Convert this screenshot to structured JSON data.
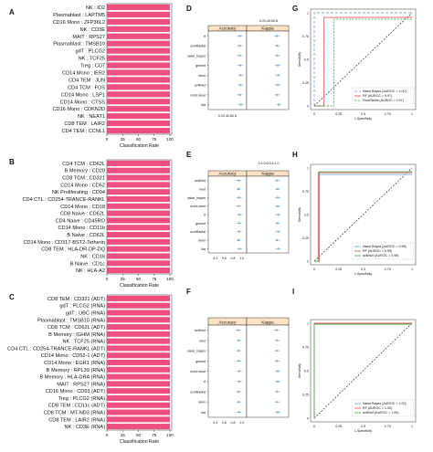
{
  "chart_data": [
    {
      "type": "bar",
      "panel_label": "A",
      "xlabel": "Classification Rate",
      "xticks": [
        "0",
        "25",
        "50",
        "75",
        "100"
      ],
      "xlim": [
        0,
        100
      ],
      "categories": [
        "NK : ID2",
        "Plasmablast : LAPTM5",
        "CD16 Mono : ZFP36L2",
        "NK : CD3E",
        "MAIT : RPS27",
        "Plasmablast : TMSB10",
        "gdT : PLCG2",
        "NK : TCF25",
        "Treg : CD7",
        "CD14 Mono : IER2",
        "CD4 TEM : JUN",
        "CD4 TCM : FOS",
        "CD14 Mono : LSP1",
        "CD14 Mono : CTSS",
        "CD16 Mono : CDKN2D",
        "NK : NEAT1",
        "CD8 TEM : LAIR2",
        "CD4 TEM : CCNL1"
      ],
      "values": [
        100,
        100,
        100,
        100,
        100,
        100,
        100,
        100,
        100,
        100,
        100,
        100,
        100,
        100,
        100,
        100,
        100,
        100
      ]
    },
    {
      "type": "bar",
      "panel_label": "B",
      "xlabel": "Classification Rate",
      "xticks": [
        "0",
        "25",
        "50",
        "75",
        "100"
      ],
      "xlim": [
        0,
        100
      ],
      "categories": [
        "CD4 TCM : CD62L",
        "B Memory : CD20",
        "CD8 TCM : CD321",
        "CD14 Mono : CD52",
        "NK Proliferating : CD94",
        "CD4 CTL : CD254-TRANCE-RANKL",
        "CD14 Mono : CD18",
        "CD8 Naive : CD62L",
        "CD4 Naive : CD45RO",
        "CD14 Mono : CD11b",
        "B Naive : CD62L",
        "CD14 Mono : CD317-BST2-Tetherin",
        "CD8 TEM : HLA-DR-DP-DQ",
        "NK : CD16",
        "B Naive : CD1c",
        "NK : HLA-A2"
      ],
      "values": [
        100,
        100,
        100,
        100,
        100,
        100,
        100,
        100,
        100,
        100,
        100,
        100,
        100,
        100,
        100,
        100
      ]
    },
    {
      "type": "bar",
      "panel_label": "C",
      "xlabel": "Classification Rate",
      "xticks": [
        "0",
        "25",
        "50",
        "75",
        "100"
      ],
      "xlim": [
        0,
        100
      ],
      "categories": [
        "CD8 TEM : CD321 (ADT)",
        "gdT : PLCG2 (RNA)",
        "gdT : UBC (RNA)",
        "Plasmablast : TMSB10 (RNA)",
        "CD8 TCM : CD62L (ADT)",
        "B Memory : IGHM (RNA)",
        "NK : TCF25 (RNA)",
        "CD4 CTL : CD254-TRANCE-RANKL (ADT)",
        "CD14 Mono : CD52-1 (ADT)",
        "CD14 Mono : EGR1 (RNA)",
        "B Memory : RPL39 (RNA)",
        "B Memory : HLA-DRA (RNA)",
        "MAIT : RPS27 (RNA)",
        "CD16 Mono : CD93 (ADT)",
        "Treg : PLCG2 (RNA)",
        "CD8 TEM : CD11c (ADT)",
        "CD8 TCM : MT-ND3 (RNA)",
        "CD8 TEM : LAIR2 (RNA)",
        "NK : CD3E (RNA)"
      ],
      "values": [
        100,
        100,
        100,
        100,
        100,
        100,
        100,
        100,
        100,
        100,
        100,
        100,
        100,
        100,
        100,
        100,
        100,
        100,
        100
      ]
    },
    {
      "type": "scatter",
      "panel_label": "D",
      "facets": [
        "Accuracy",
        "Kappa"
      ],
      "top_ticks": "0.20.40.60.8",
      "bottom_ticks": "0.20.40.60.8",
      "categories": [
        "rf",
        "svmRadial",
        "naive_bayes",
        "glmnet",
        "kknn",
        "avNNet",
        "svmLinear",
        "lda"
      ],
      "series": [
        {
          "facet": "Accuracy",
          "values": [
            0.8,
            0.8,
            0.8,
            0.81,
            0.82,
            0.82,
            0.8,
            0.83
          ]
        },
        {
          "facet": "Kappa",
          "values": [
            0.7,
            0.71,
            0.71,
            0.72,
            0.73,
            0.72,
            0.71,
            0.74
          ]
        }
      ],
      "xlim": [
        0.1,
        0.9
      ]
    },
    {
      "type": "scatter",
      "panel_label": "E",
      "facets": [
        "Accuracy",
        "Kappa"
      ],
      "top_ticks": "0.4 0.6 0.8 1.0",
      "bottom_ticks": [
        "0.4",
        "0.6",
        "0.8",
        "1.0"
      ],
      "categories": [
        "avNNet",
        "nnet",
        "naive_bayes",
        "svmLinear",
        "rf",
        "glmnet",
        "svmRadial",
        "kknn",
        "lda"
      ],
      "series": [
        {
          "facet": "Accuracy",
          "values": [
            0.93,
            0.93,
            0.94,
            0.93,
            0.95,
            0.94,
            0.94,
            0.93,
            0.95
          ]
        },
        {
          "facet": "Kappa",
          "values": [
            0.87,
            0.88,
            0.88,
            0.88,
            0.89,
            0.88,
            0.89,
            0.87,
            0.89
          ]
        }
      ],
      "xlim": [
        0.3,
        1.05
      ]
    },
    {
      "type": "scatter",
      "panel_label": "F",
      "facets": [
        "Accuracy",
        "Kappa"
      ],
      "bottom_ticks": [
        "0.4",
        "0.6",
        "0.8",
        "1.0"
      ],
      "categories": [
        "avNNet",
        "nnet",
        "naive_bayes",
        "glmnet",
        "svmLinear",
        "rf",
        "svmRadial",
        "kknn",
        "lda"
      ],
      "series": [
        {
          "facet": "Accuracy",
          "values": [
            0.92,
            0.93,
            0.93,
            0.93,
            0.94,
            0.94,
            0.93,
            0.93,
            0.94
          ]
        },
        {
          "facet": "Kappa",
          "values": [
            0.86,
            0.87,
            0.87,
            0.87,
            0.88,
            0.88,
            0.87,
            0.87,
            0.88
          ]
        }
      ],
      "xlim": [
        0.3,
        1.05
      ]
    },
    {
      "type": "line",
      "panel_label": "G",
      "xlabel": "1-Specificity",
      "ylabel": "Sensitivity",
      "xticks": [
        "0",
        "0.25",
        "0.5",
        "0.75",
        "1"
      ],
      "yticks": [
        "0",
        "0.25",
        "0.5",
        "0.75",
        "1"
      ],
      "legend_position": "bottom-right",
      "series": [
        {
          "name": "Naive Bayes (AUROC = 1.00)",
          "color": "#6fa8dc",
          "dash": "3,2",
          "x": [
            0,
            0,
            1
          ],
          "y": [
            0,
            1,
            1
          ]
        },
        {
          "name": "RF (AUROC = 0.97)",
          "color": "#e05757",
          "dash": "",
          "x": [
            0,
            0.1,
            0.1,
            1
          ],
          "y": [
            0,
            0,
            0.95,
            0.95
          ]
        },
        {
          "name": "SvmRadial (AUROC = 0.97)",
          "color": "#4caf50",
          "dash": "2,1.5",
          "x": [
            0,
            0.2,
            0.2,
            1
          ],
          "y": [
            0,
            0,
            0.93,
            0.93
          ]
        }
      ]
    },
    {
      "type": "line",
      "panel_label": "H",
      "xlabel": "1-Specificity",
      "ylabel": "Sensitivity",
      "xticks": [
        "0",
        "0.25",
        "0.5",
        "0.75",
        "1"
      ],
      "yticks": [
        "0",
        "0.25",
        "0.5",
        "0.75",
        "1"
      ],
      "legend_position": "bottom-right",
      "series": [
        {
          "name": "Naive Bayes (AUROC = 0.98)",
          "color": "#6fa8dc",
          "dash": "",
          "x": [
            0,
            0.05,
            0.05,
            1
          ],
          "y": [
            0,
            0,
            0.93,
            0.93
          ]
        },
        {
          "name": "RF (AUROC = 0.99)",
          "color": "#e05757",
          "dash": "",
          "x": [
            0,
            0.04,
            0.04,
            1
          ],
          "y": [
            0,
            0,
            0.95,
            0.95
          ]
        },
        {
          "name": "avNNet (AUROC = 0.99)",
          "color": "#4caf50",
          "dash": "",
          "x": [
            0,
            0.05,
            0.05,
            1
          ],
          "y": [
            0,
            0,
            0.96,
            0.96
          ]
        }
      ]
    },
    {
      "type": "line",
      "panel_label": "I",
      "xlabel": "1-Specificity",
      "ylabel": "Sensitivity",
      "xticks": [
        "0",
        "0.25",
        "0.5",
        "0.75",
        "1"
      ],
      "yticks": [
        "0",
        "0.25",
        "0.5",
        "0.75",
        "1"
      ],
      "legend_position": "bottom-right",
      "series": [
        {
          "name": "Naive Bayes (AUROC = 1.00)",
          "color": "#6fa8dc",
          "dash": "",
          "x": [
            0,
            0,
            1
          ],
          "y": [
            0,
            0.995,
            0.995
          ]
        },
        {
          "name": "RF (AUROC = 1.00)",
          "color": "#e05757",
          "dash": "",
          "x": [
            0,
            0,
            1
          ],
          "y": [
            0,
            1,
            1
          ]
        },
        {
          "name": "avNNet (AUROC = 1.00)",
          "color": "#4caf50",
          "dash": "",
          "x": [
            0,
            0,
            1
          ],
          "y": [
            0,
            0.99,
            0.99
          ]
        }
      ]
    }
  ],
  "colors": {
    "bar": "#ef4f7f",
    "facet_strip": "#fbe3c4",
    "point": "#6fa8dc",
    "diagonal": "#111111",
    "panel_border": "#333333"
  }
}
